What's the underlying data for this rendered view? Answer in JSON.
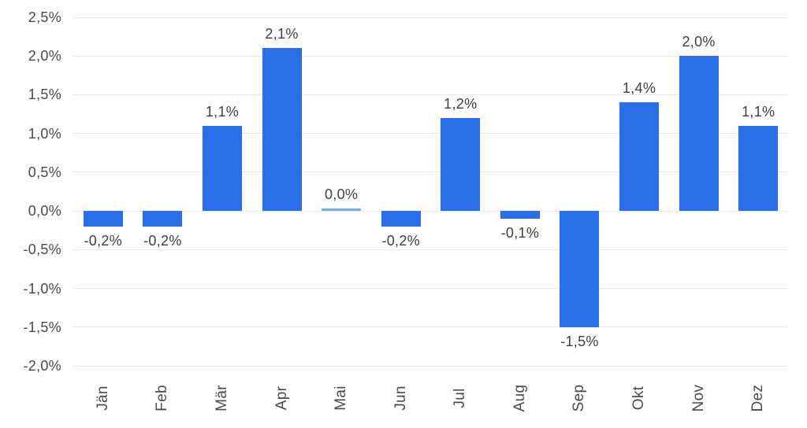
{
  "chart_data": {
    "type": "bar",
    "title": "",
    "xlabel": "",
    "ylabel": "",
    "categories": [
      "Jän",
      "Feb",
      "Mär",
      "Apr",
      "Mai",
      "Jun",
      "Jul",
      "Aug",
      "Sep",
      "Okt",
      "Nov",
      "Dez"
    ],
    "values": [
      -0.2,
      -0.2,
      1.1,
      2.1,
      0.0,
      -0.2,
      1.2,
      -0.1,
      -1.5,
      1.4,
      2.0,
      1.1
    ],
    "value_labels": [
      "-0,2%",
      "-0,2%",
      "1,1%",
      "2,1%",
      "0,0%",
      "-0,2%",
      "1,2%",
      "-0,1%",
      "-1,5%",
      "1,4%",
      "2,0%",
      "1,1%"
    ],
    "y_tick_values": [
      2.5,
      2.0,
      1.5,
      1.0,
      0.5,
      0.0,
      -0.5,
      -1.0,
      -1.5,
      -2.0
    ],
    "y_tick_labels": [
      "2,5%",
      "2,0%",
      "1,5%",
      "1,0%",
      "0,5%",
      "0,0%",
      "-0,5%",
      "-1,0%",
      "-1,5%",
      "-2,0%"
    ],
    "ylim": [
      -2.0,
      2.5
    ],
    "grid": true,
    "legend": "none",
    "bar_color": "#2b6fe6",
    "zero_bar_color": "#7baaf7",
    "grid_color": "#e9e9e9",
    "value_label_color": "#3c4043",
    "axis_text_color": "#4a4a4a"
  }
}
